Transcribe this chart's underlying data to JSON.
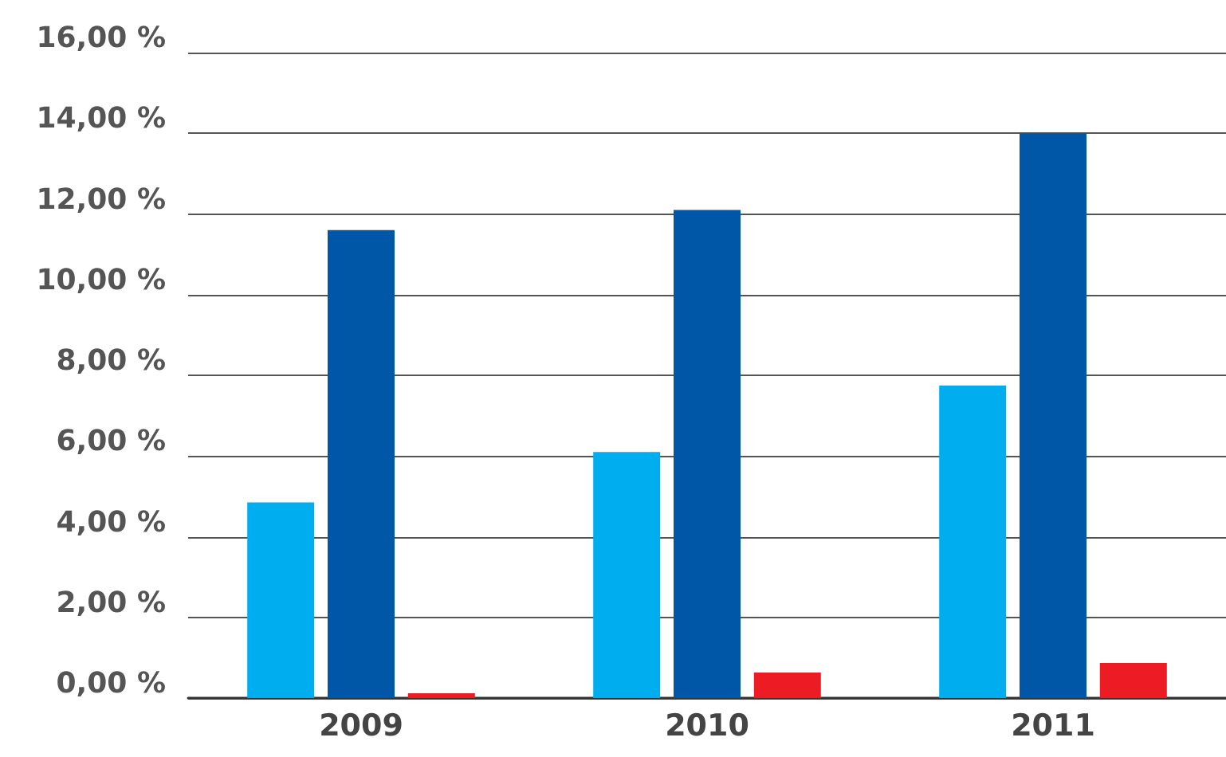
{
  "chart_data": {
    "type": "bar",
    "categories": [
      "2009",
      "2010",
      "2011"
    ],
    "series": [
      {
        "color": "#00aeef",
        "values": [
          4.85,
          6.1,
          7.75
        ]
      },
      {
        "color": "#0057a8",
        "values": [
          11.6,
          12.1,
          14.0
        ]
      },
      {
        "color": "#ed1c24",
        "values": [
          0.12,
          0.63,
          0.87
        ]
      }
    ],
    "ylim": [
      0,
      16
    ],
    "yticks": [
      {
        "value": 0,
        "label": "0,00 %"
      },
      {
        "value": 2,
        "label": "2,00 %"
      },
      {
        "value": 4,
        "label": "4,00 %"
      },
      {
        "value": 6,
        "label": "6,00 %"
      },
      {
        "value": 8,
        "label": "8,00 %"
      },
      {
        "value": 10,
        "label": "10,00 %"
      },
      {
        "value": 12,
        "label": "12,00 %"
      },
      {
        "value": 14,
        "label": "14,00 %"
      },
      {
        "value": 16,
        "label": "16,00 %"
      }
    ],
    "grid": "y"
  }
}
